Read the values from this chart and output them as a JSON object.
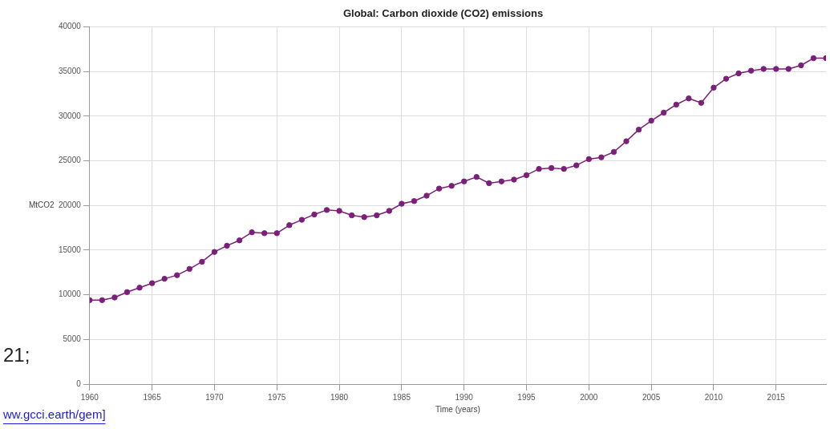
{
  "chart_data": {
    "type": "line",
    "title": "Global: Carbon dioxide (CO2) emissions",
    "xlabel": "Time (years)",
    "ylabel": "MtCO2",
    "x": [
      1960,
      1961,
      1962,
      1963,
      1964,
      1965,
      1966,
      1967,
      1968,
      1969,
      1970,
      1971,
      1972,
      1973,
      1974,
      1975,
      1976,
      1977,
      1978,
      1979,
      1980,
      1981,
      1982,
      1983,
      1984,
      1985,
      1986,
      1987,
      1988,
      1989,
      1990,
      1991,
      1992,
      1993,
      1994,
      1995,
      1996,
      1997,
      1998,
      1999,
      2000,
      2001,
      2002,
      2003,
      2004,
      2005,
      2006,
      2007,
      2008,
      2009,
      2010,
      2011,
      2012,
      2013,
      2014,
      2015,
      2016,
      2017,
      2018,
      2019
    ],
    "series": [
      {
        "color": "#7b1f7b",
        "values": [
          9400,
          9400,
          9700,
          10300,
          10800,
          11300,
          11800,
          12200,
          12900,
          13700,
          14800,
          15500,
          16100,
          17000,
          16900,
          16900,
          17800,
          18400,
          19000,
          19500,
          19400,
          18900,
          18700,
          18900,
          19400,
          20200,
          20500,
          21100,
          21900,
          22200,
          22700,
          23200,
          22500,
          22700,
          22900,
          23400,
          24100,
          24200,
          24100,
          24500,
          25200,
          25400,
          26000,
          27200,
          28500,
          29500,
          30400,
          31300,
          32000,
          31500,
          33200,
          34200,
          34800,
          35100,
          35300,
          35300,
          35300,
          35700,
          36500,
          36500
        ]
      }
    ],
    "xlim": [
      1960,
      2019
    ],
    "xticks": [
      1960,
      1965,
      1970,
      1975,
      1980,
      1985,
      1990,
      1995,
      2000,
      2005,
      2010,
      2015
    ],
    "ylim": [
      0,
      40000
    ],
    "yticks": [
      0,
      5000,
      10000,
      15000,
      20000,
      25000,
      30000,
      35000,
      40000
    ],
    "grid": true,
    "marker": "circle",
    "line_style": "solid",
    "annotations": [
      "21;",
      "ww.gcci.earth/gem]"
    ]
  }
}
